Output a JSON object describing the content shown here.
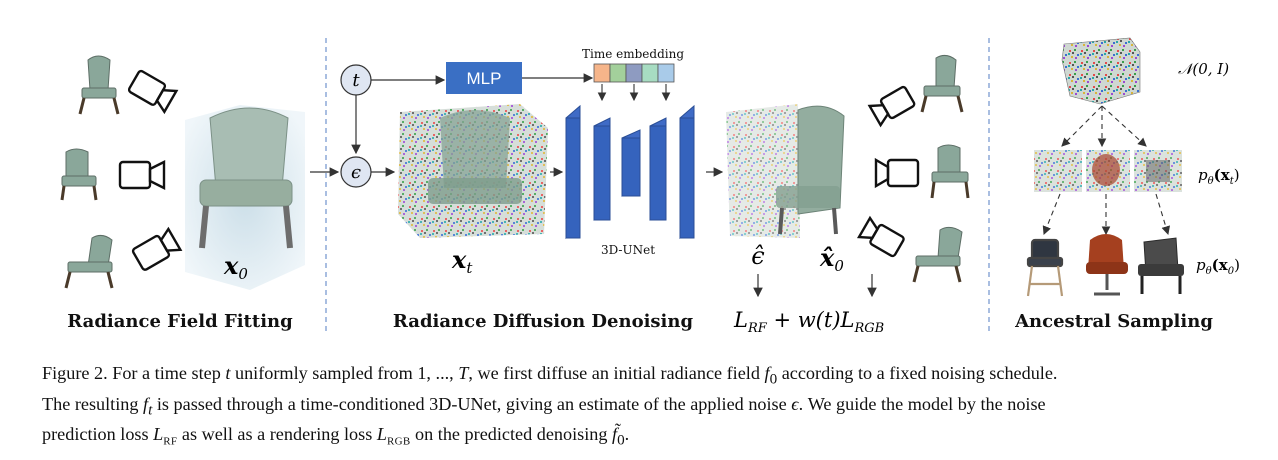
{
  "sections": {
    "fitting": "Radiance Field Fitting",
    "denoising": "Radiance Diffusion Denoising",
    "sampling": "Ancestral Sampling"
  },
  "blocks": {
    "mlp": "MLP",
    "time_embedding": "Time embedding",
    "unet": "3D-UNet"
  },
  "symbols": {
    "t": "t",
    "epsilon": "ϵ",
    "x0": "x",
    "x0_sub": "0",
    "xt": "x",
    "xt_sub": "t",
    "eps_hat": "ϵ̂",
    "x0_hat": "x̂",
    "x0_hat_sub": "0",
    "loss": "L",
    "loss_rf_sub": "RF",
    "loss_mid": " + w(t)L",
    "loss_rgb_sub": "RGB",
    "normal": "𝒩(0, I)",
    "p_xt": "p",
    "p_xt_sub": "θ",
    "p_xt_arg": "(x",
    "p_xt_arg_sub": "t",
    "p_x0": "p",
    "p_x0_sub": "θ",
    "p_x0_arg": "(x",
    "p_x0_arg_sub": "0"
  },
  "colors": {
    "mlp_fill": "#3a6fc4",
    "unet_fill": "#3f6bc6",
    "chair_fill": "#8aa79a",
    "embedding": [
      "#f6b58a",
      "#a3d09b",
      "#8e9bc1",
      "#a7dcc2",
      "#a9cbe9"
    ]
  },
  "icons": [
    "chair-icon",
    "camera-icon",
    "noise-volume-icon",
    "stool-icon",
    "armchair-icon"
  ],
  "caption": {
    "line1_a": "Figure 2. For a time step ",
    "line1_t": "t",
    "line1_b": " uniformly sampled from 1, ..., ",
    "line1_T": "T",
    "line1_c": ", we first diffuse an initial radiance field ",
    "line1_f0": "f",
    "line1_f0_sub": "0",
    "line1_d": " according to a fixed noising schedule.",
    "line2_a": "The resulting ",
    "line2_ft": "f",
    "line2_ft_sub": "t",
    "line2_b": " is passed through a time-conditioned 3D-UNet, giving an estimate of the applied noise ",
    "line2_eps": "ϵ",
    "line2_c": ". We guide the model by the noise",
    "line3_a": "prediction loss ",
    "line3_L1": "L",
    "line3_L1_sub": "RF",
    "line3_b": " as well as a rendering loss ",
    "line3_L2": "L",
    "line3_L2_sub": "RGB",
    "line3_c": " on the predicted denoising ",
    "line3_f": "f̃",
    "line3_f_sub": "0",
    "line3_d": "."
  }
}
